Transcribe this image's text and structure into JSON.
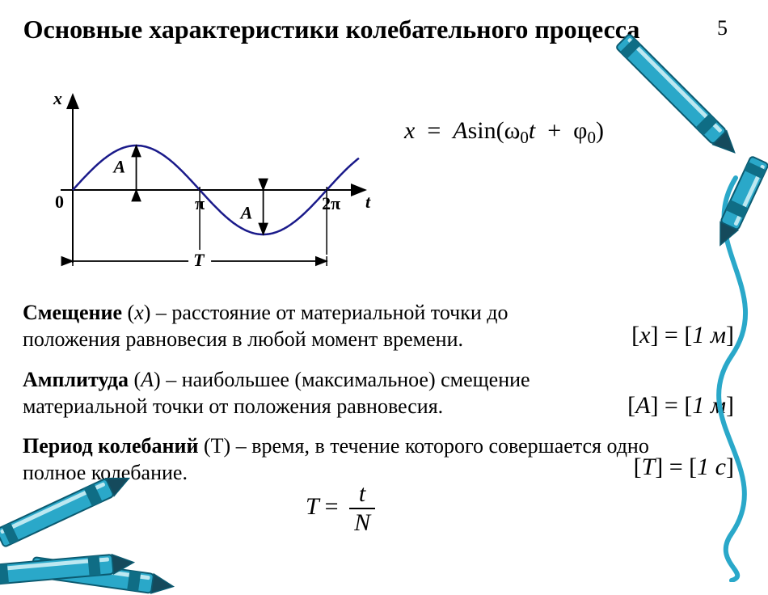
{
  "page_number": "5",
  "title": "Основные характеристики колебательного процесса",
  "chart": {
    "type": "line",
    "curve_color": "#1a1a8a",
    "axis_color": "#000000",
    "background_color": "#ffffff",
    "line_width": 2.5,
    "amplitude": 1,
    "x_end_rad": 7.1,
    "axis_labels": {
      "y": "x",
      "x": "t",
      "origin": "0"
    },
    "tick_labels": {
      "pi": "π",
      "two_pi": "2π"
    },
    "annotations": {
      "A_up": "A",
      "A_down": "A",
      "T": "T"
    },
    "label_fontsize": 22,
    "label_fontstyle": "italic-bold"
  },
  "equation": {
    "lhs": "x",
    "eq": "=",
    "A": "A",
    "sin": "sin",
    "lp": "(",
    "omega": "ω",
    "sub0a": "0",
    "t": "t",
    "plus": "+",
    "phi": "φ",
    "sub0b": "0",
    "rp": ")"
  },
  "definitions": [
    {
      "term": "Смещение",
      "symbol": "x",
      "text": " – расстояние от материальной точки до положения равновесия в любой момент времени.",
      "unit_sym": "x",
      "unit_val": "1 м"
    },
    {
      "term": "Амплитуда",
      "symbol": "A",
      "text": " – наибольшее (максимальное) смещение материальной точки от положения равновесия.",
      "unit_sym": "A",
      "unit_val": "1 м"
    },
    {
      "term": "Период колебаний",
      "symbol": "T",
      "text": " – время, в течение которого совершается одно полное колебание.",
      "unit_sym": "T",
      "unit_val": "1 с"
    }
  ],
  "period_formula": {
    "lhs": "T",
    "num": "t",
    "den": "N"
  },
  "crayons": {
    "body_fill": "#2aa8c9",
    "body_stroke": "#0b5a70",
    "tip_fill": "#154a5c",
    "band_fill": "#0f6d85",
    "highlight": "#bde8f1"
  }
}
